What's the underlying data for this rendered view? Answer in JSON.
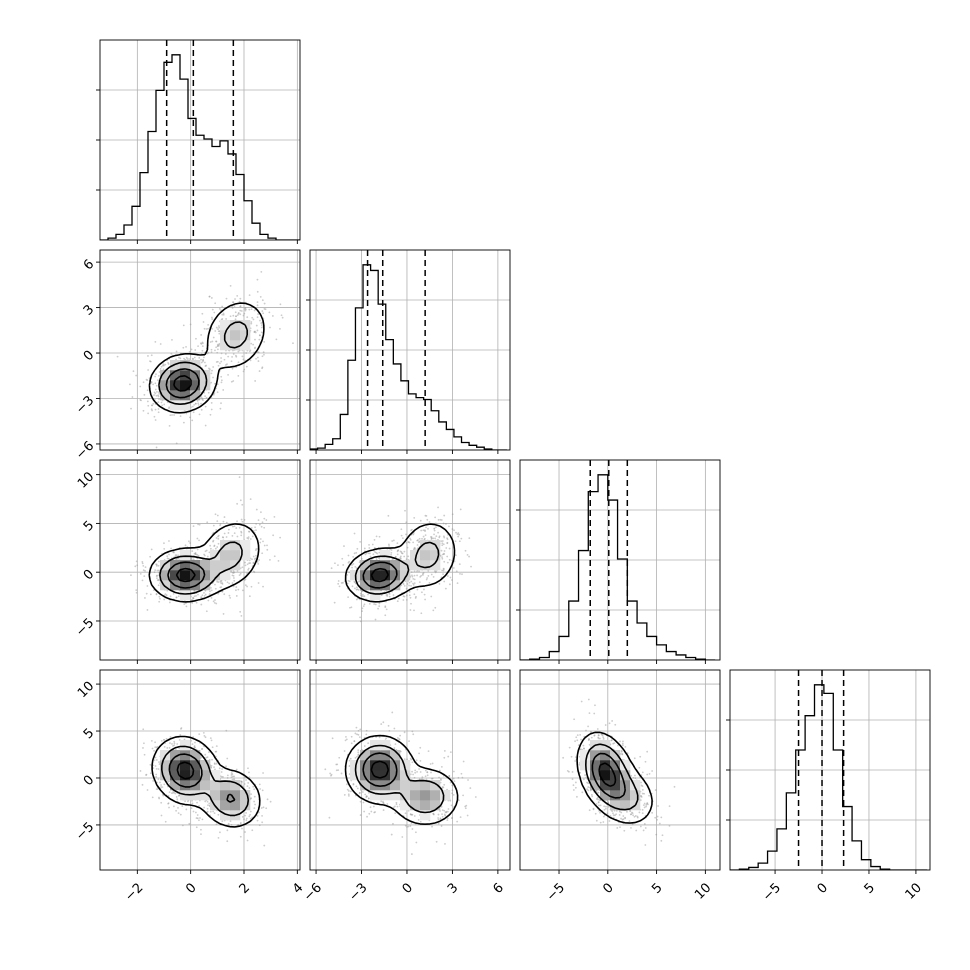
{
  "chart_data": {
    "type": "corner",
    "title": "",
    "grid": true,
    "variables": [
      {
        "name": "",
        "lim": [
          -3.4,
          4.1
        ],
        "ticks": [
          -2,
          0,
          2,
          4
        ],
        "tick_labels": [
          "−2",
          "0",
          "2",
          "4"
        ],
        "hist": {
          "edges": [
            -3.4,
            -3.1,
            -2.8,
            -2.5,
            -2.2,
            -1.9,
            -1.6,
            -1.3,
            -1.0,
            -0.7,
            -0.4,
            -0.1,
            0.2,
            0.5,
            0.8,
            1.1,
            1.4,
            1.7,
            2.0,
            2.3,
            2.6,
            2.9,
            3.2,
            3.5,
            3.8,
            4.1
          ],
          "counts": [
            0,
            2,
            6,
            16,
            36,
            72,
            116,
            160,
            190,
            198,
            172,
            130,
            112,
            108,
            100,
            106,
            92,
            70,
            42,
            18,
            6,
            2,
            0,
            0,
            0
          ]
        },
        "quantiles": [
          -0.9,
          0.1,
          1.6
        ]
      },
      {
        "name": "",
        "lim": [
          -6.4,
          6.8
        ],
        "ticks": [
          -6,
          -3,
          0,
          3,
          6
        ],
        "tick_labels": [
          "−6",
          "−3",
          "0",
          "3",
          "6"
        ],
        "hist": {
          "edges": [
            -6.4,
            -5.9,
            -5.4,
            -4.9,
            -4.4,
            -3.9,
            -3.4,
            -2.9,
            -2.4,
            -1.9,
            -1.4,
            -0.9,
            -0.4,
            0.1,
            0.6,
            1.1,
            1.6,
            2.1,
            2.6,
            3.1,
            3.6,
            4.1,
            4.6,
            5.1,
            5.6,
            6.1,
            6.6
          ],
          "counts": [
            1,
            2,
            6,
            12,
            38,
            96,
            152,
            198,
            192,
            156,
            118,
            92,
            74,
            60,
            56,
            54,
            42,
            30,
            22,
            14,
            8,
            5,
            3,
            1,
            0,
            0
          ]
        },
        "quantiles": [
          -2.6,
          -1.6,
          1.2
        ]
      },
      {
        "name": "",
        "lim": [
          -9.0,
          11.5
        ],
        "ticks": [
          -5,
          0,
          5,
          10
        ],
        "tick_labels": [
          "−5",
          "0",
          "5",
          "10"
        ],
        "hist": {
          "edges": [
            -9.0,
            -8.0,
            -7.0,
            -6.0,
            -5.0,
            -4.0,
            -3.0,
            -2.0,
            -1.0,
            0.0,
            1.0,
            2.0,
            3.0,
            4.0,
            5.0,
            6.0,
            7.0,
            8.0,
            9.0,
            10.0,
            11.0
          ],
          "counts": [
            0,
            1,
            3,
            10,
            28,
            70,
            130,
            200,
            220,
            190,
            120,
            70,
            44,
            28,
            18,
            10,
            6,
            3,
            1,
            0
          ]
        },
        "quantiles": [
          -1.8,
          0.1,
          2.0
        ]
      },
      {
        "name": "",
        "lim": [
          -9.8,
          11.5
        ],
        "ticks": [
          -5,
          0,
          5,
          10
        ],
        "tick_labels": [
          "−5",
          "0",
          "5",
          "10"
        ],
        "hist": {
          "edges": [
            -9.8,
            -8.8,
            -7.8,
            -6.8,
            -5.8,
            -4.8,
            -3.8,
            -2.8,
            -1.8,
            -0.8,
            0.2,
            1.2,
            2.2,
            3.2,
            4.2,
            5.2,
            6.2,
            7.2,
            8.2,
            9.2,
            10.2,
            11.2
          ],
          "counts": [
            0,
            1,
            3,
            8,
            22,
            48,
            90,
            140,
            180,
            216,
            206,
            140,
            74,
            34,
            12,
            4,
            1,
            0,
            0,
            0,
            0
          ]
        },
        "quantiles": [
          -2.5,
          0.0,
          2.3
        ]
      }
    ],
    "pairs": [
      {
        "row": 1,
        "col": 0,
        "components": [
          {
            "mean": [
              -0.3,
              -2.0
            ],
            "sd": [
              0.55,
              0.85
            ],
            "rho": 0.1,
            "weight": 0.65
          },
          {
            "mean": [
              1.7,
              1.2
            ],
            "sd": [
              0.6,
              1.2
            ],
            "rho": 0.2,
            "weight": 0.35
          }
        ]
      },
      {
        "row": 2,
        "col": 0,
        "components": [
          {
            "mean": [
              -0.2,
              -0.3
            ],
            "sd": [
              0.6,
              1.2
            ],
            "rho": 0.0,
            "weight": 0.65
          },
          {
            "mean": [
              1.5,
              1.8
            ],
            "sd": [
              0.6,
              1.8
            ],
            "rho": 0.2,
            "weight": 0.35
          }
        ]
      },
      {
        "row": 3,
        "col": 0,
        "components": [
          {
            "mean": [
              -0.2,
              0.8
            ],
            "sd": [
              0.55,
              1.6
            ],
            "rho": -0.1,
            "weight": 0.65
          },
          {
            "mean": [
              1.5,
              -2.2
            ],
            "sd": [
              0.55,
              1.5
            ],
            "rho": -0.1,
            "weight": 0.35
          }
        ]
      },
      {
        "row": 2,
        "col": 1,
        "components": [
          {
            "mean": [
              -1.8,
              -0.3
            ],
            "sd": [
              1.0,
              1.2
            ],
            "rho": 0.1,
            "weight": 0.65
          },
          {
            "mean": [
              1.4,
              1.8
            ],
            "sd": [
              1.0,
              1.8
            ],
            "rho": 0.1,
            "weight": 0.35
          }
        ]
      },
      {
        "row": 3,
        "col": 1,
        "components": [
          {
            "mean": [
              -1.8,
              0.9
            ],
            "sd": [
              1.0,
              1.6
            ],
            "rho": 0.0,
            "weight": 0.65
          },
          {
            "mean": [
              1.2,
              -2.0
            ],
            "sd": [
              1.1,
              1.5
            ],
            "rho": 0.0,
            "weight": 0.35
          }
        ]
      },
      {
        "row": 3,
        "col": 2,
        "components": [
          {
            "mean": [
              -0.2,
              0.6
            ],
            "sd": [
              1.3,
              1.9
            ],
            "rho": -0.3,
            "weight": 0.75
          },
          {
            "mean": [
              2.0,
              -2.0
            ],
            "sd": [
              1.5,
              1.6
            ],
            "rho": -0.2,
            "weight": 0.25
          }
        ]
      }
    ]
  }
}
